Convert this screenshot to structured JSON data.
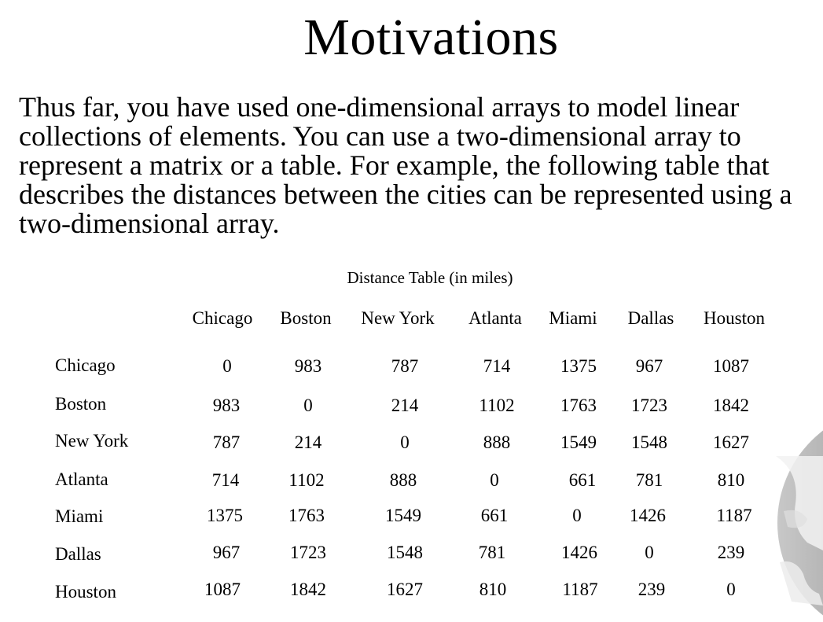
{
  "slide": {
    "title": "Motivations",
    "body": "Thus far, you have used one-dimensional arrays to model linear collections of elements. You can use a two-dimensional array to represent a matrix or a table. For example, the following table that describes the distances between the cities can be represented using a two-dimensional array."
  },
  "table": {
    "caption": "Distance Table (in miles)",
    "columns": [
      "Chicago",
      "Boston",
      "New York",
      "Atlanta",
      "Miami",
      "Dallas",
      "Houston"
    ],
    "rows": [
      {
        "city": "Chicago",
        "values": [
          "0",
          "983",
          "787",
          "714",
          "1375",
          "967",
          "1087"
        ]
      },
      {
        "city": "Boston",
        "values": [
          "983",
          "0",
          "214",
          "1102",
          "1763",
          "1723",
          "1842"
        ]
      },
      {
        "city": "New York",
        "values": [
          "787",
          "214",
          "0",
          "888",
          "1549",
          "1548",
          "1627"
        ]
      },
      {
        "city": "Atlanta",
        "values": [
          "714",
          "1102",
          "888",
          "0",
          "661",
          "781",
          "810"
        ]
      },
      {
        "city": "Miami",
        "values": [
          "1375",
          "1763",
          "1549",
          "661",
          "0",
          "1426",
          "1187"
        ]
      },
      {
        "city": "Dallas",
        "values": [
          "967",
          "1723",
          "1548",
          "781",
          "1426",
          "0",
          "239"
        ]
      },
      {
        "city": "Houston",
        "values": [
          "1087",
          "1842",
          "1627",
          "810",
          "1187",
          "239",
          "0"
        ]
      }
    ]
  },
  "decor": {
    "globe_color": "#8a8a8a"
  }
}
